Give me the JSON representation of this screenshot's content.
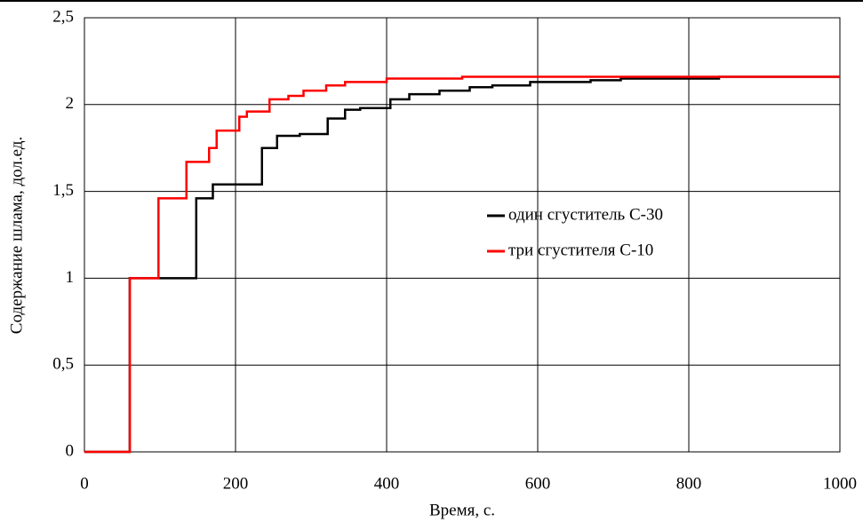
{
  "chart_data": {
    "type": "line",
    "x_label": "Время, с.",
    "y_label": "Содержание шлама, дол.ед.",
    "xlim": [
      0,
      1000
    ],
    "xticks": [
      0,
      200,
      400,
      600,
      800,
      1000
    ],
    "ylim": [
      0,
      2.5
    ],
    "yticks": [
      0,
      {
        "value": 0.5,
        "label": "0,5"
      },
      1,
      {
        "value": 1.5,
        "label": "1,5"
      },
      2,
      {
        "value": 2.5,
        "label": "2,5"
      }
    ],
    "grid": true,
    "series": [
      {
        "name": "один сгуститель С-30",
        "color": "#000000",
        "x": [
          0,
          60,
          60,
          148,
          148,
          170,
          170,
          235,
          235,
          255,
          255,
          285,
          285,
          322,
          322,
          345,
          345,
          365,
          365,
          405,
          405,
          430,
          430,
          470,
          470,
          510,
          510,
          540,
          540,
          590,
          590,
          670,
          670,
          710,
          710,
          840,
          840,
          1000
        ],
        "values": [
          0,
          0,
          1,
          1,
          1.46,
          1.46,
          1.54,
          1.54,
          1.75,
          1.75,
          1.82,
          1.82,
          1.83,
          1.83,
          1.92,
          1.92,
          1.97,
          1.97,
          1.98,
          1.98,
          2.03,
          2.03,
          2.06,
          2.06,
          2.08,
          2.08,
          2.1,
          2.1,
          2.11,
          2.11,
          2.13,
          2.13,
          2.14,
          2.14,
          2.15,
          2.15,
          2.16,
          2.16
        ]
      },
      {
        "name": "три сгустителя С-10",
        "color": "#ff0000",
        "x": [
          0,
          60,
          60,
          98,
          98,
          135,
          135,
          165,
          165,
          175,
          175,
          205,
          205,
          215,
          215,
          245,
          245,
          270,
          270,
          290,
          290,
          320,
          320,
          345,
          345,
          400,
          400,
          500,
          500,
          1000
        ],
        "values": [
          0,
          0,
          1,
          1,
          1.46,
          1.46,
          1.67,
          1.67,
          1.75,
          1.75,
          1.85,
          1.85,
          1.93,
          1.93,
          1.96,
          1.96,
          2.03,
          2.03,
          2.05,
          2.05,
          2.08,
          2.08,
          2.11,
          2.11,
          2.13,
          2.13,
          2.15,
          2.15,
          2.16,
          2.16
        ]
      }
    ]
  }
}
